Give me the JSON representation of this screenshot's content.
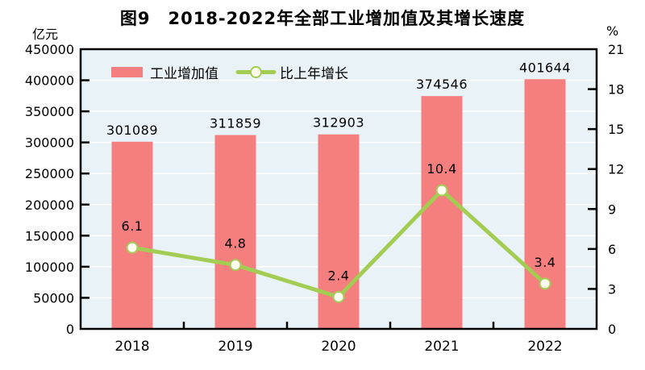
{
  "title": "图9　2018-2022年全部工业增加值及其增长速度",
  "left_axis_unit": "亿元",
  "right_axis_unit": "%",
  "chart_data": {
    "type": "bar+line",
    "categories": [
      "2018",
      "2019",
      "2020",
      "2021",
      "2022"
    ],
    "series": [
      {
        "name": "工业增加值",
        "type": "bar",
        "axis": "left",
        "values": [
          301089,
          311859,
          312903,
          374546,
          401644
        ],
        "labels": [
          "301089",
          "311859",
          "312903",
          "374546",
          "401644"
        ],
        "color": "#f57e7e"
      },
      {
        "name": "比上年增长",
        "type": "line",
        "axis": "right",
        "values": [
          6.1,
          4.8,
          2.4,
          10.4,
          3.4
        ],
        "labels": [
          "6.1",
          "4.8",
          "2.4",
          "10.4",
          "3.4"
        ],
        "color": "#a2cc52",
        "marker_fill": "#fffdf0"
      }
    ],
    "left_axis": {
      "unit": "亿元",
      "min": 0,
      "max": 450000,
      "step": 50000,
      "tick_values": [
        0,
        50000,
        100000,
        150000,
        200000,
        250000,
        300000,
        350000,
        400000,
        450000
      ]
    },
    "right_axis": {
      "unit": "%",
      "min": 0,
      "max": 21,
      "step": 3,
      "tick_values": [
        0,
        3,
        6,
        9,
        12,
        15,
        18,
        21
      ]
    },
    "grid": true,
    "legend_position": "top-left-inside",
    "colors": {
      "plot_bg": "#e9f2f6",
      "grid": "#ffffff",
      "axis": "#000000",
      "value_label": "#1f1f1f"
    }
  }
}
